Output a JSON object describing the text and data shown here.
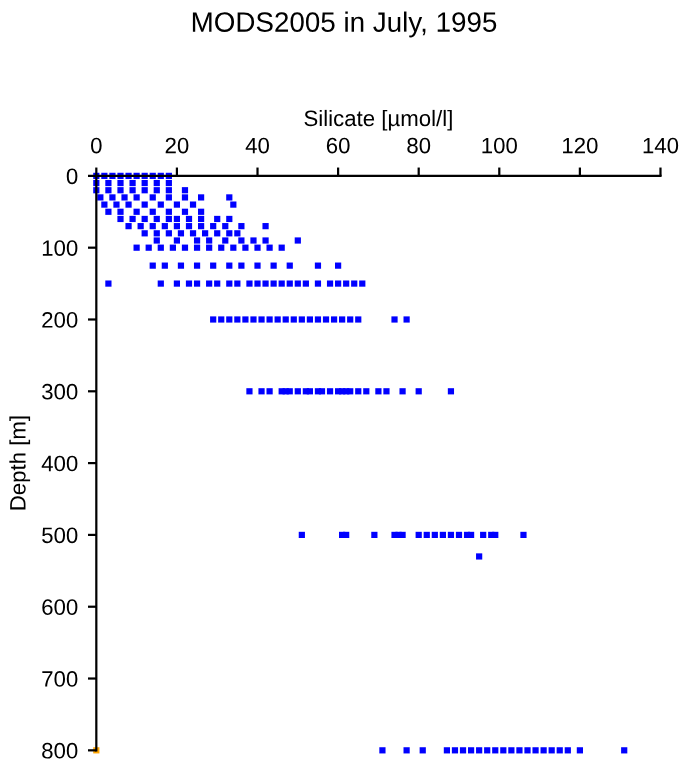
{
  "chart_data": {
    "type": "scatter",
    "title": "MODS2005 in July, 1995",
    "xlabel": "Silicate [µmol/l]",
    "ylabel": "Depth [m]",
    "xlim": [
      0,
      140
    ],
    "xticks": [
      0,
      20,
      40,
      60,
      80,
      100,
      120,
      140
    ],
    "ylim": [
      800,
      0
    ],
    "yticks": [
      0,
      100,
      200,
      300,
      400,
      500,
      600,
      700,
      800
    ],
    "grid": false,
    "marker": "square",
    "series": [
      {
        "color": "#0000ff",
        "x": [
          0,
          2,
          4,
          6,
          8,
          10,
          12,
          14,
          16,
          18,
          0,
          3,
          6,
          9,
          12,
          15,
          18,
          0,
          3,
          6,
          9,
          12,
          15,
          18,
          22,
          1,
          4,
          7,
          10,
          14,
          18,
          22,
          26,
          33,
          2,
          5,
          8,
          12,
          16,
          20,
          24,
          34,
          3,
          6,
          10,
          14,
          18,
          22,
          26,
          6,
          9,
          12,
          15,
          18,
          20,
          23,
          26,
          30,
          33,
          8,
          11,
          14,
          17,
          20,
          23,
          26,
          29,
          32,
          36,
          42,
          12,
          15,
          18,
          21,
          24,
          27,
          30,
          33,
          35,
          15,
          20,
          25,
          28,
          32,
          36,
          39,
          42,
          50,
          10,
          13,
          16,
          19,
          22,
          25,
          28,
          31,
          34,
          37,
          40,
          43,
          46,
          14,
          17,
          21,
          25,
          29,
          33,
          36,
          40,
          44,
          48,
          55,
          60,
          3,
          16,
          20,
          23,
          25,
          28,
          30,
          33,
          35,
          38,
          40,
          42,
          44,
          46,
          48,
          50,
          52,
          55,
          58,
          60,
          62,
          64,
          66,
          29,
          31,
          33,
          35,
          37,
          39,
          41,
          43,
          45,
          47,
          49,
          51,
          53,
          55,
          57,
          59,
          61,
          63,
          65,
          74,
          77,
          38,
          41,
          43,
          46,
          47,
          48,
          50,
          52,
          53,
          55,
          56,
          58,
          60,
          61,
          62,
          63,
          65,
          67,
          70,
          72,
          76,
          80,
          88,
          51,
          61,
          62,
          69,
          74,
          75,
          76,
          80,
          82,
          84,
          86,
          88,
          90,
          92,
          93,
          96,
          98,
          99,
          106,
          95,
          71,
          77,
          81,
          87,
          89,
          91,
          93,
          95,
          97,
          99,
          101,
          103,
          105,
          107,
          109,
          111,
          113,
          115,
          117,
          120,
          131
        ],
        "values": [
          0,
          0,
          0,
          0,
          0,
          0,
          0,
          0,
          0,
          0,
          10,
          10,
          10,
          10,
          10,
          10,
          10,
          20,
          20,
          20,
          20,
          20,
          20,
          20,
          20,
          30,
          30,
          30,
          30,
          30,
          30,
          30,
          30,
          30,
          40,
          40,
          40,
          40,
          40,
          40,
          40,
          40,
          50,
          50,
          50,
          50,
          50,
          50,
          50,
          60,
          60,
          60,
          60,
          60,
          60,
          60,
          60,
          60,
          60,
          70,
          70,
          70,
          70,
          70,
          70,
          70,
          70,
          70,
          70,
          70,
          80,
          80,
          80,
          80,
          80,
          80,
          80,
          80,
          80,
          90,
          90,
          90,
          90,
          90,
          90,
          90,
          90,
          90,
          100,
          100,
          100,
          100,
          100,
          100,
          100,
          100,
          100,
          100,
          100,
          100,
          100,
          125,
          125,
          125,
          125,
          125,
          125,
          125,
          125,
          125,
          125,
          125,
          125,
          150,
          150,
          150,
          150,
          150,
          150,
          150,
          150,
          150,
          150,
          150,
          150,
          150,
          150,
          150,
          150,
          150,
          150,
          150,
          150,
          150,
          150,
          150,
          200,
          200,
          200,
          200,
          200,
          200,
          200,
          200,
          200,
          200,
          200,
          200,
          200,
          200,
          200,
          200,
          200,
          200,
          200,
          200,
          200,
          300,
          300,
          300,
          300,
          300,
          300,
          300,
          300,
          300,
          300,
          300,
          300,
          300,
          300,
          300,
          300,
          300,
          300,
          300,
          300,
          300,
          300,
          300,
          500,
          500,
          500,
          500,
          500,
          500,
          500,
          500,
          500,
          500,
          500,
          500,
          500,
          500,
          500,
          500,
          500,
          500,
          500,
          530,
          800,
          800,
          800,
          800,
          800,
          800,
          800,
          800,
          800,
          800,
          800,
          800,
          800,
          800,
          800,
          800,
          800,
          800,
          800,
          800,
          800
        ]
      },
      {
        "color": "#ffa500",
        "x": [
          0
        ],
        "values": [
          800
        ]
      }
    ]
  }
}
